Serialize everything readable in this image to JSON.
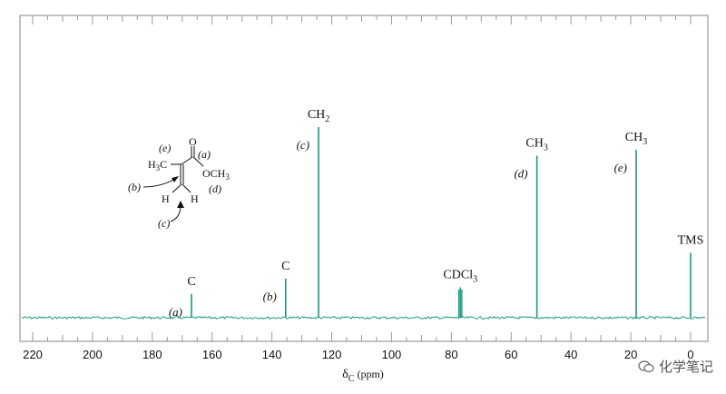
{
  "chart_data": {
    "type": "line",
    "title": "",
    "xlabel_main": "δ",
    "xlabel_sub": "C",
    "xlabel_unit": "(ppm)",
    "ylabel": "",
    "xlim": [
      220,
      0
    ],
    "x_reversed": true,
    "x_ticks": [
      220,
      200,
      180,
      160,
      140,
      120,
      100,
      80,
      60,
      40,
      20,
      0
    ],
    "line_color": "#1a9a80",
    "peaks": [
      {
        "shift": 166.9,
        "height": 0.125,
        "group": "C",
        "letter": "(a)"
      },
      {
        "shift": 135.4,
        "height": 0.205,
        "group": "C",
        "letter": "(b)"
      },
      {
        "shift": 124.4,
        "height": 1.0,
        "group": "CH2",
        "letter": "(c)"
      },
      {
        "shift": 77.0,
        "height": 0.16,
        "group": "CDCl3",
        "letter": ""
      },
      {
        "shift": 51.4,
        "height": 0.85,
        "group": "CH3",
        "letter": "(d)"
      },
      {
        "shift": 18.2,
        "height": 0.88,
        "group": "CH3",
        "letter": "(e)"
      },
      {
        "shift": 0.0,
        "height": 0.34,
        "group": "TMS",
        "letter": ""
      }
    ]
  },
  "molecule": {
    "label_e": "(e)",
    "label_a": "(a)",
    "label_b": "(b)",
    "label_c": "(c)",
    "label_d": "(d)",
    "carbonyl_o": "O",
    "ester_group": "OCH3",
    "methyl": "H3C",
    "h_left": "H",
    "h_right": "H"
  },
  "watermark": {
    "text": "化学笔记"
  }
}
